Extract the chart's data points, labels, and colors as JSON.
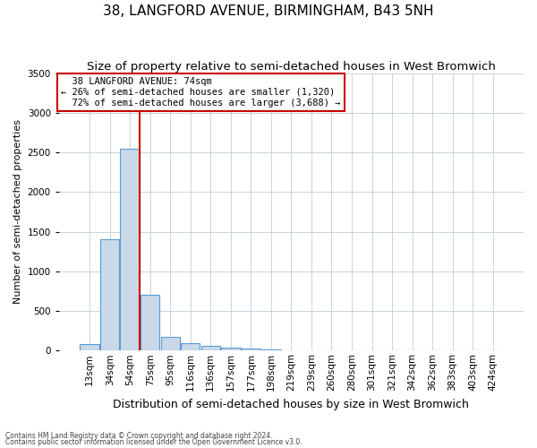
{
  "title1": "38, LANGFORD AVENUE, BIRMINGHAM, B43 5NH",
  "title2": "Size of property relative to semi-detached houses in West Bromwich",
  "xlabel": "Distribution of semi-detached houses by size in West Bromwich",
  "ylabel": "Number of semi-detached properties",
  "footnote1": "Contains HM Land Registry data © Crown copyright and database right 2024.",
  "footnote2": "Contains public sector information licensed under the Open Government Licence v3.0.",
  "bar_labels": [
    "13sqm",
    "34sqm",
    "54sqm",
    "75sqm",
    "95sqm",
    "116sqm",
    "136sqm",
    "157sqm",
    "177sqm",
    "198sqm",
    "219sqm",
    "239sqm",
    "260sqm",
    "280sqm",
    "301sqm",
    "321sqm",
    "342sqm",
    "362sqm",
    "383sqm",
    "403sqm",
    "424sqm"
  ],
  "bar_values": [
    80,
    1400,
    2550,
    700,
    175,
    90,
    55,
    40,
    30,
    15,
    5,
    0,
    0,
    0,
    0,
    0,
    0,
    0,
    0,
    0,
    0
  ],
  "bar_color": "#c9d9e8",
  "bar_edge_color": "#5b9bd5",
  "bar_edge_width": 0.8,
  "ylim": [
    0,
    3500
  ],
  "yticks": [
    0,
    500,
    1000,
    1500,
    2000,
    2500,
    3000,
    3500
  ],
  "red_line_x": 2.5,
  "red_line_color": "#cc0000",
  "annotation_text_line1": "  38 LANGFORD AVENUE: 74sqm",
  "annotation_text_line2": "← 26% of semi-detached houses are smaller (1,320)",
  "annotation_text_line3": "  72% of semi-detached houses are larger (3,688) →",
  "annotation_box_color": "#cc0000",
  "bg_color": "#ffffff",
  "grid_color": "#c8d4e0",
  "title1_fontsize": 11,
  "title2_fontsize": 9.5,
  "xlabel_fontsize": 9,
  "ylabel_fontsize": 8,
  "tick_fontsize": 7.5,
  "annotation_fontsize": 7.5,
  "footnote_fontsize": 5.5
}
